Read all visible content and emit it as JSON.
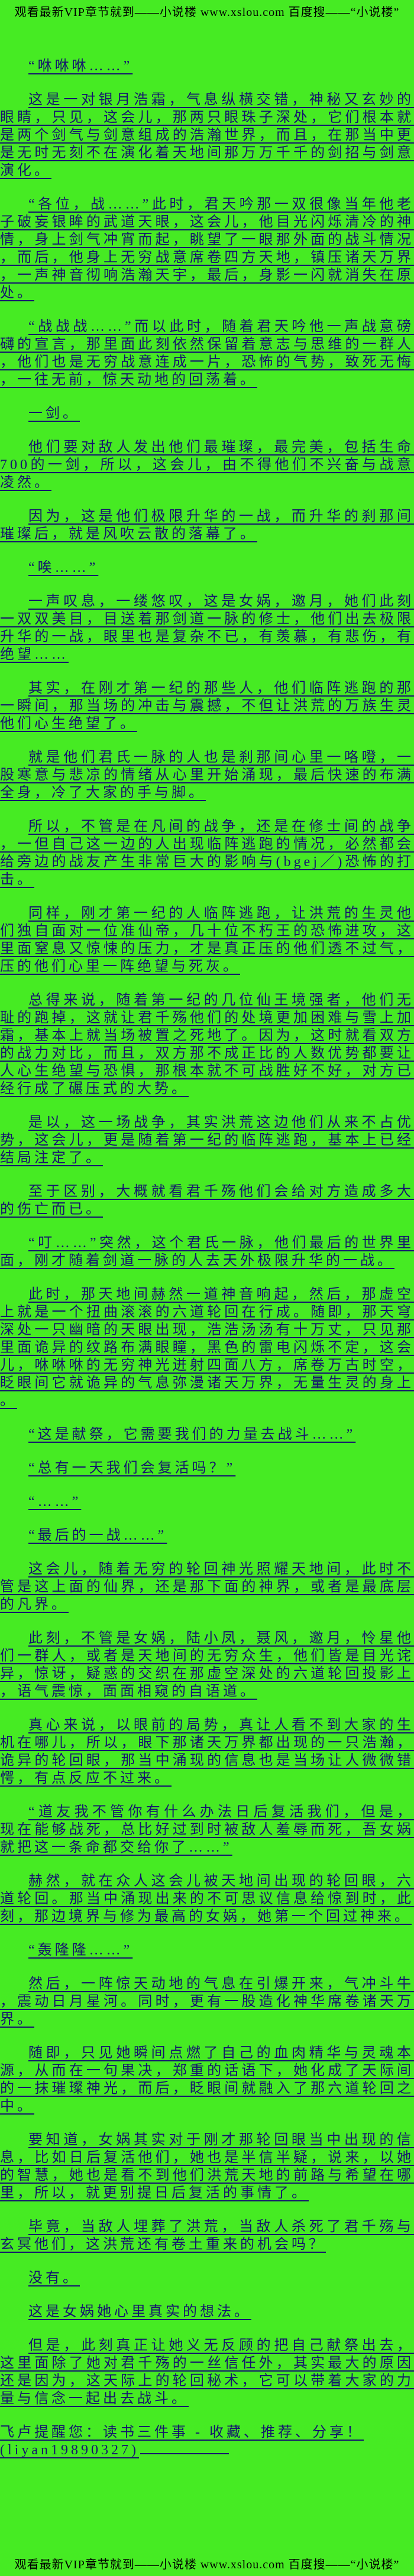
{
  "page": {
    "bg_color": "#46EB23",
    "text_color": "#14146E",
    "banner_text_color": "#000000"
  },
  "header": {
    "text": "观看最新VIP章节就到——小说楼 www.xslou.com 百度搜——“小说楼”"
  },
  "footer": {
    "text": "观看最新VIP章节就到——小说楼 www.xslou.com 百度搜——“小说楼”"
  },
  "content": {
    "paragraphs": [
      {
        "text": "“咻咻咻……”"
      },
      {
        "text": "这是一对银月浩霜，气息纵横交错，神秘又玄妙的眼睛，只见，这会儿，那两只眼珠子深处，它们根本就是两个剑气与剑意组成的浩瀚世界，而且，在那当中更是无时无刻不在演化着天地间那万万千千的剑招与剑意演化。"
      },
      {
        "text": "“各位，战……”此时，君天吟那一双很像当年他老子破妄银眸的武道天眼，这会儿，他目光闪烁清冷的神情，身上剑气冲宵而起，眺望了一眼那外面的战斗情况，而后，他身上无穷战意席卷四方天地，镇压诸天万界，一声神音彻响浩瀚天宇，最后，身影一闪就消失在原处。"
      },
      {
        "text": "“战战战……”而以此时，随着君天吟他一声战意磅礴的宣言，那里面此刻依然保留着意志与思维的一群人，他们也是无穷战意连成一片，恐怖的气势，致死无悔，一往无前，惊天动地的回荡着。"
      },
      {
        "text": "一剑。"
      },
      {
        "text": "他们要对敌人发出他们最璀璨，最完美，包括生命700的一剑，所以，这会儿，由不得他们不兴奋与战意凌然。"
      },
      {
        "text": "因为，这是他们极限升华的一战，而升华的刹那间璀璨后，就是风吹云散的落幕了。"
      },
      {
        "text": "“唉……”"
      },
      {
        "text": "一声叹息，一缕悠叹，这是女娲，邀月，她们此刻一双双美目，目送着那剑道一脉的修士，他们出去极限升华的一战，眼里也是复杂不已，有羡慕，有悲伤，有绝望……"
      },
      {
        "text": "其实，在刚才第一纪的那些人，他们临阵逃跑的那一瞬间，那当场的冲击与震撼，不但让洪荒的万族生灵他们心生绝望了。"
      },
      {
        "text": "就是他们君氏一脉的人也是刹那间心里一咯噔，一股寒意与悲凉的情绪从心里开始涌现，最后快速的布满全身，冷了大家的手与脚。"
      },
      {
        "text": "所以，不管是在凡间的战争，还是在修士间的战争，一但自己这一边的人出现临阵逃跑的情况，必然都会给旁边的战友产生非常巨大的影响与(bgej／)恐怖的打击。"
      },
      {
        "text": "同样，刚才第一纪的人临阵逃跑，让洪荒的生灵他们独自面对一位准仙帝，几十位不朽王的恐怖进攻，这里面窒息又惊悚的压力，才是真正压的他们透不过气，压的他们心里一阵绝望与死灰。"
      },
      {
        "text": "总得来说，随着第一纪的几位仙王境强者，他们无耻的跑掉，这就让君千殇他们的处境更加困难与雪上加霜，基本上就当场被置之死地了。因为，这时就看双方的战力对比，而且，双方那不成正比的人数优势都要让人心生绝望与恐惧，那根本就不可战胜好不好，对方已经行成了碾压式的大势。"
      },
      {
        "text": "是以，这一场战争，其实洪荒这边他们从来不占优势，这会儿，更是随着第一纪的临阵逃跑，基本上已经结局注定了。"
      },
      {
        "text": "至于区别，大概就看君千殇他们会给对方造成多大的伤亡而已。"
      },
      {
        "text": "“叮……”突然，这个君氏一脉，他们最后的世界里面，刚才随着剑道一脉的人去天外极限升华的一战。"
      },
      {
        "text": "此时，那天地间赫然一道神音响起，然后，那虚空上就是一个扭曲滚滚的六道轮回在行成。随即，那天穹深处一只幽暗的天眼出现，浩浩汤汤有十万丈，只见那里面诡异的纹路布满眼瞳，黑色的雷电闪烁不定，这会儿，咻咻咻的无穷神光迸射四面八方，席卷万古时空，眨眼间它就诡异的气息弥漫诸天万界，无量生灵的身上。"
      },
      {
        "text": "“这是献祭，它需要我们的力量去战斗……”"
      },
      {
        "text": "“总有一天我们会复活吗？”"
      },
      {
        "text": "“……”"
      },
      {
        "text": "“最后的一战……”"
      },
      {
        "text": "这会儿，随着无穷的轮回神光照耀天地间，此时不管是这上面的仙界，还是那下面的神界，或者是最底层的凡界。"
      },
      {
        "text": "此刻，不管是女娲，陆小凤，聂风，邀月，怜星他们一群人，或者是天地间的无穷众生，他们皆是目光诧异，惊讶，疑惑的交织在那虚空深处的六道轮回投影上，语气震惊，面面相窥的自语道。"
      },
      {
        "text": "真心来说，以眼前的局势，真让人看不到大家的生机在哪儿，所以，眼下那诸天万界都出现的一只浩瀚，诡异的轮回眼，那当中涌现的信息也是当场让人微微错愕，有点反应不过来。"
      },
      {
        "text": "“道友我不管你有什么办法日后复活我们，但是，现在能够战死，总比好过到时被敌人羞辱而死，吾女娲就把这一条命都交给你了……”"
      },
      {
        "text": "赫然，就在众人这会儿被天地间出现的轮回眼，六道轮回。那当中涌现出来的不可思议信息给惊到时，此刻，那边境界与修为最高的女娲，她第一个回过神来。"
      },
      {
        "text": "“轰隆隆……”"
      },
      {
        "text": "然后，一阵惊天动地的气息在引爆开来，气冲斗牛，震动日月星河。同时，更有一股造化神华席卷诸天万界。"
      },
      {
        "text": "随即，只见她瞬间点燃了自己的血肉精华与灵魂本源，从而在一句果决，郑重的话语下，她化成了天际间的一抹璀璨神光，而后，眨眼间就融入了那六道轮回之中。"
      },
      {
        "text": "要知道，女娲其实对于刚才那轮回眼当中出现的信息，比如日后复活他们，她也是半信半疑，说来，以她的智慧，她也是看不到他们洪荒天地的前路与希望在哪里，所以，就更别提日后复活的事情了。"
      },
      {
        "text": "毕竟，当敌人埋葬了洪荒，当敌人杀死了君千殇与玄冥他们，这洪荒还有卷土重来的机会吗？"
      },
      {
        "text": "没有。"
      },
      {
        "text": "这是女娲她心里真实的想法。"
      },
      {
        "text": "但是，此刻真正让她义无反顾的把自己献祭出去，这里面除了她对君千殇的一丝信任外，其实最大的原因还是因为，这天际上的轮回秘术，它可以带着大家的力量与信念一起出去战斗。"
      },
      {
        "text": "飞卢提醒您：读书三件事 - 收藏、推荐、分享！\n(liyan19890327)",
        "type": "note"
      }
    ]
  }
}
